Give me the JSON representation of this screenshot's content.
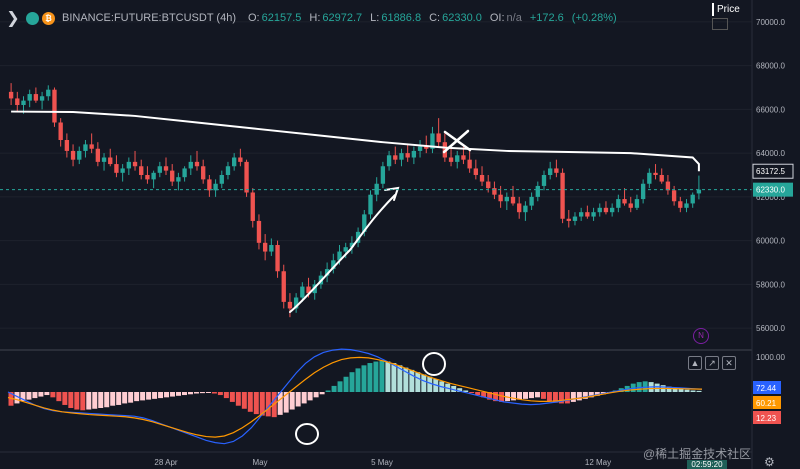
{
  "header": {
    "symbol": "BINANCE:FUTURE:BTCUSDT (4h)",
    "open_label": "O:",
    "open": "62157.5",
    "high_label": "H:",
    "high": "62972.7",
    "low_label": "L:",
    "low": "61886.8",
    "close_label": "C:",
    "close": "62330.0",
    "oi_label": "OI:",
    "oi": "n/a",
    "change": "+172.6",
    "change_pct": "(+0.28%)",
    "price_axis_title": "Price"
  },
  "price_axis": {
    "ticks": [
      "70000.0",
      "68000.0",
      "66000.0",
      "64000.0",
      "62000.0",
      "60000.0",
      "58000.0",
      "56000.0"
    ],
    "ma_label": "63172.5",
    "last_label": "62330.0"
  },
  "indicator_axis": {
    "ticks": [
      "1000.00"
    ],
    "labels": [
      "72.44",
      "60.21",
      "12.23"
    ]
  },
  "time_axis": [
    "28 Apr",
    "May",
    "5 May",
    "12 May"
  ],
  "badge_letter": "N",
  "watermark": "@稀土掘金技术社区",
  "countdown": "02:59:20",
  "colors": {
    "background": "#131722",
    "up": "#26a69a",
    "down": "#ef5350",
    "ma": "#ffffff",
    "macd": "#2962ff",
    "signal": "#ff9800"
  },
  "icons": {
    "menu": "chevron-right-icon",
    "coin1": "tradingview-icon",
    "coin2": "bitcoin-icon",
    "indicator_menu": "arrows-icon",
    "indicator_max": "maximize-icon",
    "indicator_close": "close-icon",
    "settings": "gear-icon"
  },
  "chart_data": [
    {
      "type": "candlestick",
      "title": "BINANCE:FUTURE:BTCUSDT (4h)",
      "x": [
        "28 Apr",
        "May",
        "5 May",
        "12 May"
      ],
      "ylim": [
        55000,
        71000
      ],
      "last_close": 62330.0,
      "ma_last": 63172.5,
      "candles": [
        [
          66800,
          67200,
          66200,
          66500
        ],
        [
          66500,
          66800,
          65900,
          66200
        ],
        [
          66200,
          66600,
          65800,
          66400
        ],
        [
          66400,
          66900,
          66100,
          66700
        ],
        [
          66700,
          67000,
          66300,
          66400
        ],
        [
          66400,
          66800,
          66000,
          66600
        ],
        [
          66600,
          67100,
          66400,
          66900
        ],
        [
          66900,
          67000,
          65200,
          65400
        ],
        [
          65400,
          65600,
          64300,
          64600
        ],
        [
          64600,
          64900,
          63800,
          64100
        ],
        [
          64100,
          64400,
          63400,
          63700
        ],
        [
          63700,
          64300,
          63500,
          64100
        ],
        [
          64100,
          64600,
          63800,
          64400
        ],
        [
          64400,
          64900,
          64000,
          64200
        ],
        [
          64200,
          64500,
          63400,
          63600
        ],
        [
          63600,
          64000,
          63200,
          63800
        ],
        [
          63800,
          64200,
          63400,
          63500
        ],
        [
          63500,
          63900,
          62900,
          63100
        ],
        [
          63100,
          63500,
          62700,
          63300
        ],
        [
          63300,
          63800,
          63000,
          63600
        ],
        [
          63600,
          64100,
          63200,
          63400
        ],
        [
          63400,
          63700,
          62800,
          63000
        ],
        [
          63000,
          63400,
          62600,
          62800
        ],
        [
          62800,
          63200,
          62400,
          63100
        ],
        [
          63100,
          63600,
          62900,
          63400
        ],
        [
          63400,
          63800,
          63000,
          63200
        ],
        [
          63200,
          63500,
          62500,
          62700
        ],
        [
          62700,
          63100,
          62300,
          62900
        ],
        [
          62900,
          63400,
          62700,
          63300
        ],
        [
          63300,
          63900,
          63000,
          63600
        ],
        [
          63600,
          64100,
          63200,
          63400
        ],
        [
          63400,
          63700,
          62600,
          62800
        ],
        [
          62800,
          63000,
          62000,
          62300
        ],
        [
          62300,
          62800,
          62000,
          62600
        ],
        [
          62600,
          63200,
          62400,
          63000
        ],
        [
          63000,
          63600,
          62800,
          63400
        ],
        [
          63400,
          64000,
          63200,
          63800
        ],
        [
          63800,
          64200,
          63400,
          63600
        ],
        [
          63600,
          63700,
          62000,
          62200
        ],
        [
          62200,
          62400,
          60600,
          60900
        ],
        [
          60900,
          61200,
          59600,
          59900
        ],
        [
          59900,
          60300,
          59100,
          59500
        ],
        [
          59500,
          60100,
          59300,
          59800
        ],
        [
          59800,
          60000,
          58300,
          58600
        ],
        [
          58600,
          58900,
          56900,
          57200
        ],
        [
          57200,
          57600,
          56500,
          56900
        ],
        [
          56900,
          57600,
          56700,
          57400
        ],
        [
          57400,
          58100,
          57200,
          57900
        ],
        [
          57900,
          58300,
          57400,
          57600
        ],
        [
          57600,
          58200,
          57300,
          58000
        ],
        [
          58000,
          58600,
          57800,
          58400
        ],
        [
          58400,
          59000,
          58100,
          58700
        ],
        [
          58700,
          59400,
          58500,
          59100
        ],
        [
          59100,
          59800,
          58900,
          59500
        ],
        [
          59500,
          59900,
          59200,
          59700
        ],
        [
          59700,
          60200,
          59400,
          59900
        ],
        [
          59900,
          60600,
          59700,
          60400
        ],
        [
          60400,
          61400,
          60200,
          61200
        ],
        [
          61200,
          62300,
          61000,
          62100
        ],
        [
          62100,
          62900,
          61800,
          62600
        ],
        [
          62600,
          63600,
          62400,
          63400
        ],
        [
          63400,
          64100,
          63200,
          63900
        ],
        [
          63900,
          64300,
          63500,
          63700
        ],
        [
          63700,
          64200,
          63400,
          64000
        ],
        [
          64000,
          64400,
          63600,
          63800
        ],
        [
          63800,
          64300,
          63500,
          64100
        ],
        [
          64100,
          64600,
          63800,
          64300
        ],
        [
          64300,
          64800,
          64000,
          64200
        ],
        [
          64200,
          65200,
          64000,
          64900
        ],
        [
          64900,
          65600,
          64300,
          64500
        ],
        [
          64500,
          64900,
          63600,
          63800
        ],
        [
          63800,
          64200,
          63400,
          63600
        ],
        [
          63600,
          64100,
          63300,
          63900
        ],
        [
          63900,
          64400,
          63500,
          63700
        ],
        [
          63700,
          64100,
          63100,
          63300
        ],
        [
          63300,
          63700,
          62800,
          63000
        ],
        [
          63000,
          63400,
          62500,
          62700
        ],
        [
          62700,
          63000,
          62200,
          62400
        ],
        [
          62400,
          62700,
          61900,
          62100
        ],
        [
          62100,
          62500,
          61500,
          61800
        ],
        [
          61800,
          62200,
          61400,
          62000
        ],
        [
          62000,
          62500,
          61600,
          61700
        ],
        [
          61700,
          62000,
          61000,
          61300
        ],
        [
          61300,
          61800,
          60900,
          61600
        ],
        [
          61600,
          62200,
          61400,
          62000
        ],
        [
          62000,
          62700,
          61800,
          62500
        ],
        [
          62500,
          63200,
          62300,
          63000
        ],
        [
          63000,
          63600,
          62800,
          63300
        ],
        [
          63300,
          63700,
          62900,
          63100
        ],
        [
          63100,
          63300,
          60800,
          61000
        ],
        [
          61000,
          61400,
          60600,
          60900
        ],
        [
          60900,
          61300,
          60700,
          61100
        ],
        [
          61100,
          61500,
          60900,
          61300
        ],
        [
          61300,
          61600,
          61000,
          61100
        ],
        [
          61100,
          61500,
          60900,
          61300
        ],
        [
          61300,
          61700,
          61100,
          61500
        ],
        [
          61500,
          61800,
          61200,
          61300
        ],
        [
          61300,
          61700,
          61100,
          61500
        ],
        [
          61500,
          62100,
          61300,
          61900
        ],
        [
          61900,
          62400,
          61600,
          61700
        ],
        [
          61700,
          62000,
          61300,
          61500
        ],
        [
          61500,
          62100,
          61400,
          61900
        ],
        [
          61900,
          62800,
          61700,
          62600
        ],
        [
          62600,
          63300,
          62400,
          63100
        ],
        [
          63100,
          63500,
          62800,
          63000
        ],
        [
          63000,
          63300,
          62600,
          62700
        ],
        [
          62700,
          63000,
          62100,
          62300
        ],
        [
          62300,
          62500,
          61600,
          61800
        ],
        [
          61800,
          62000,
          61300,
          61500
        ],
        [
          61500,
          61900,
          61300,
          61700
        ],
        [
          61700,
          62200,
          61500,
          62100
        ],
        [
          62157.5,
          62972.7,
          61886.8,
          62330.0
        ]
      ],
      "ma": [
        [
          0,
          65900
        ],
        [
          10,
          65880
        ],
        [
          20,
          65700
        ],
        [
          30,
          65400
        ],
        [
          40,
          65100
        ],
        [
          50,
          64800
        ],
        [
          60,
          64500
        ],
        [
          70,
          64250
        ],
        [
          80,
          64100
        ],
        [
          90,
          64050
        ],
        [
          100,
          64000
        ],
        [
          110,
          63800
        ],
        [
          120,
          63500
        ],
        [
          130,
          63350
        ],
        [
          140,
          63172.5
        ]
      ]
    },
    {
      "type": "bar",
      "title": "",
      "histogram": [
        -180,
        -150,
        -120,
        -100,
        -80,
        -60,
        -40,
        -70,
        -120,
        -170,
        -210,
        -230,
        -240,
        -230,
        -220,
        -210,
        -200,
        -180,
        -170,
        -150,
        -140,
        -120,
        -110,
        -100,
        -90,
        -80,
        -70,
        -60,
        -50,
        -40,
        -30,
        -20,
        -15,
        -10,
        -20,
        -40,
        -80,
        -130,
        -180,
        -220,
        -260,
        -290,
        -310,
        -320,
        -330,
        -300,
        -270,
        -230,
        -190,
        -150,
        -110,
        -70,
        -30,
        20,
        80,
        140,
        200,
        260,
        310,
        350,
        380,
        400,
        410,
        400,
        380,
        350,
        320,
        290,
        260,
        230,
        200,
        170,
        140,
        110,
        80,
        50,
        20,
        -10,
        -40,
        -70,
        -100,
        -120,
        -130,
        -120,
        -110,
        -100,
        -90,
        -80,
        -70,
        -90,
        -120,
        -140,
        -150,
        -150,
        -130,
        -110,
        -90,
        -70,
        -50,
        -30,
        -10,
        20,
        50,
        80,
        110,
        130,
        140,
        130,
        110,
        90,
        70,
        50,
        40,
        30,
        20,
        15
      ],
      "macd": [
        0,
        -80,
        -160,
        -240,
        -300,
        -340,
        -360,
        -370,
        -380,
        -390,
        -400,
        -410,
        -420,
        -430,
        -440,
        -470,
        -520,
        -580,
        -640,
        -700,
        -760,
        -820,
        -880,
        -920,
        -940,
        -900,
        -800,
        -650,
        -450,
        -250,
        -50,
        150,
        350,
        520,
        640,
        720,
        760,
        780,
        770,
        740,
        700,
        640,
        560,
        470,
        380,
        290,
        210,
        150,
        100,
        60,
        20,
        -20,
        -60,
        -100,
        -140,
        -180,
        -200,
        -220,
        -230,
        -220,
        -200,
        -180,
        -150,
        -120,
        -90,
        -60,
        -30,
        0,
        30,
        60,
        80,
        90,
        95,
        90,
        80,
        70,
        60,
        50
      ],
      "signal": [
        -100,
        -140,
        -190,
        -240,
        -290,
        -330,
        -360,
        -380,
        -395,
        -410,
        -420,
        -430,
        -440,
        -450,
        -470,
        -500,
        -540,
        -590,
        -640,
        -690,
        -740,
        -780,
        -810,
        -820,
        -800,
        -740,
        -650,
        -540,
        -420,
        -290,
        -160,
        -30,
        100,
        230,
        350,
        450,
        530,
        590,
        620,
        630,
        620,
        590,
        550,
        500,
        440,
        380,
        320,
        260,
        210,
        160,
        120,
        80,
        40,
        0,
        -40,
        -80,
        -110,
        -140,
        -160,
        -170,
        -170,
        -160,
        -140,
        -120,
        -100,
        -70,
        -40,
        -10,
        15,
        35,
        50,
        60,
        65,
        65,
        62,
        58,
        55,
        52
      ],
      "labels": [
        "72.44",
        "60.21",
        "12.23"
      ]
    }
  ]
}
